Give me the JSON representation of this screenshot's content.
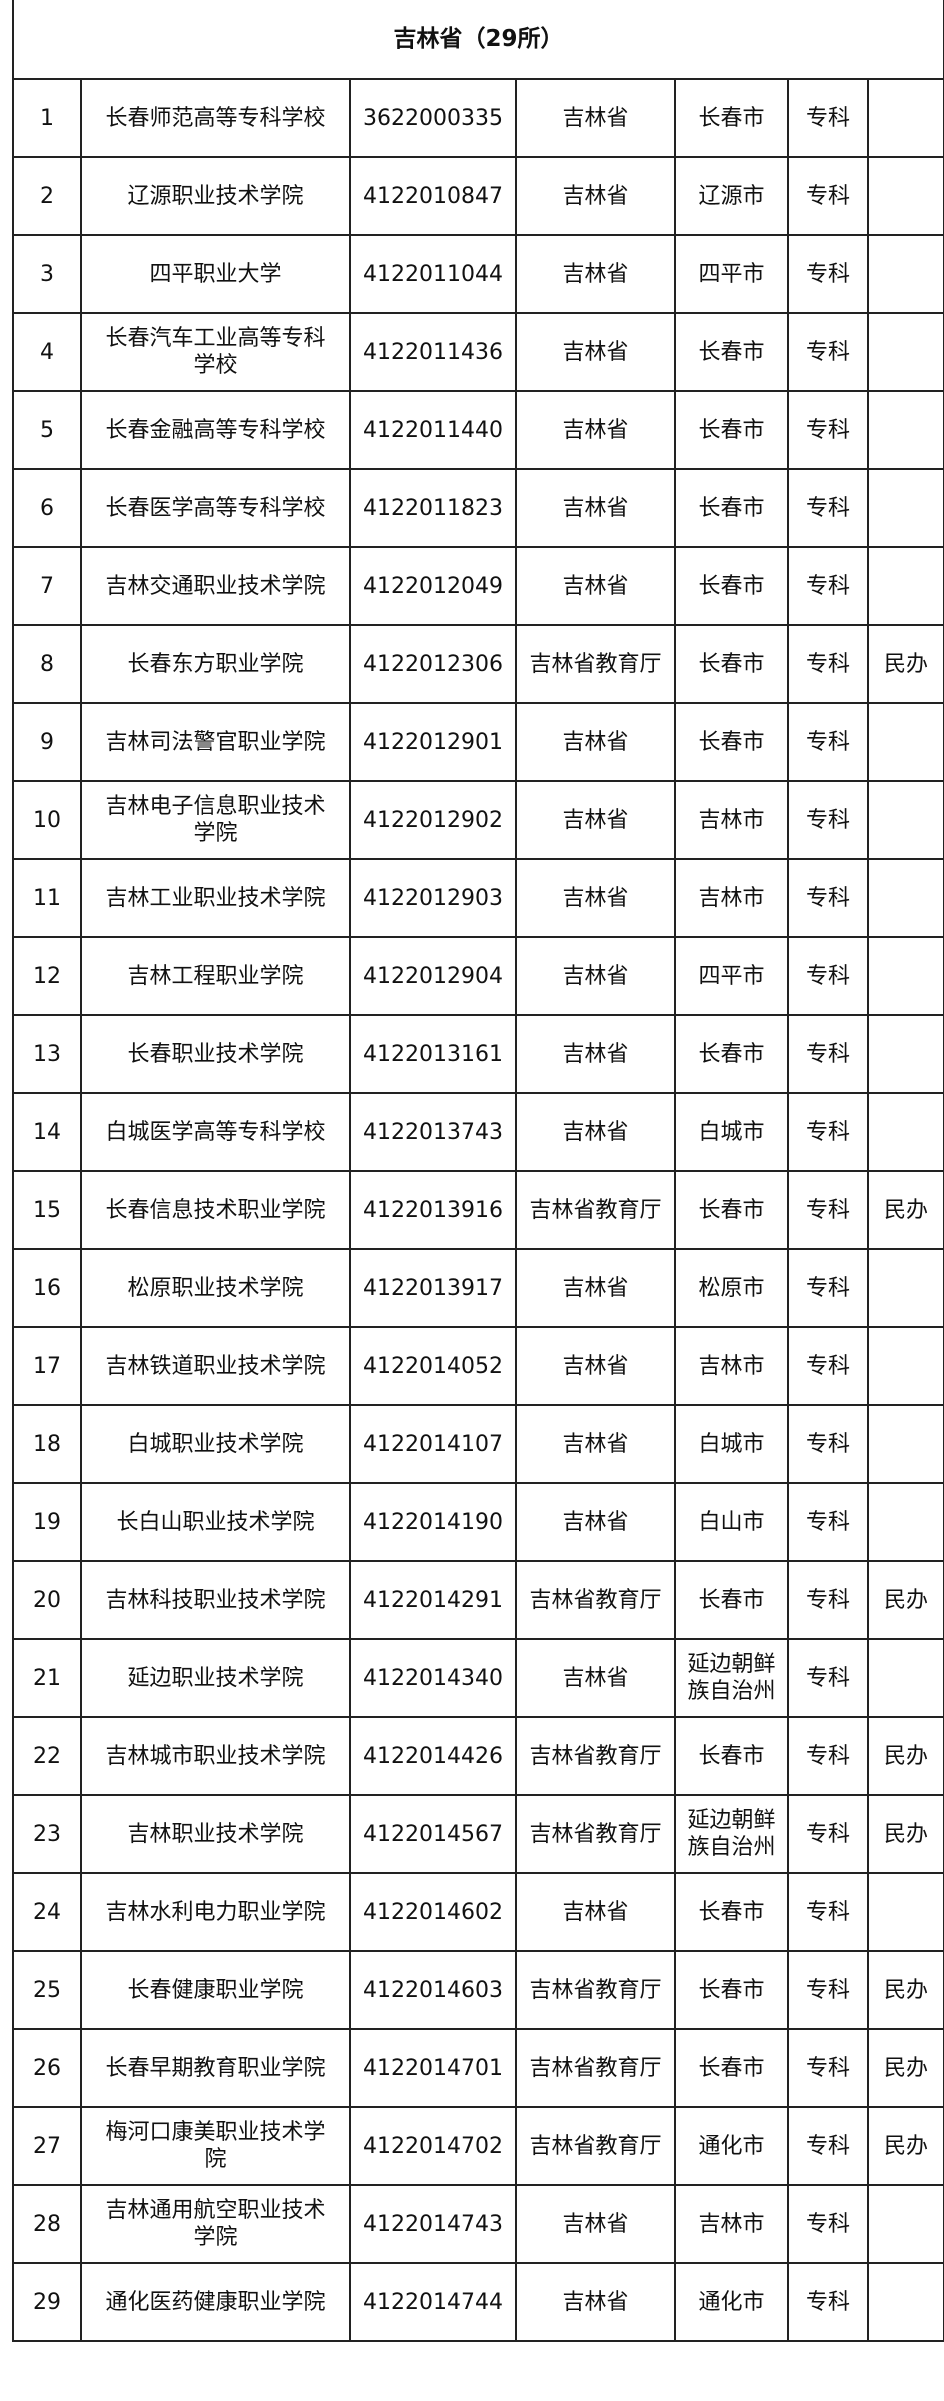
{
  "title": "吉林省（29所）",
  "rows": [
    {
      "no": "1",
      "name": "长春师范高等专科学校",
      "code": "3622000335",
      "authority": "吉林省",
      "city": "长春市",
      "level": "专科",
      "note": ""
    },
    {
      "no": "2",
      "name": "辽源职业技术学院",
      "code": "4122010847",
      "authority": "吉林省",
      "city": "辽源市",
      "level": "专科",
      "note": ""
    },
    {
      "no": "3",
      "name": "四平职业大学",
      "code": "4122011044",
      "authority": "吉林省",
      "city": "四平市",
      "level": "专科",
      "note": ""
    },
    {
      "no": "4",
      "name": "长春汽车工业高等专科\n学校",
      "code": "4122011436",
      "authority": "吉林省",
      "city": "长春市",
      "level": "专科",
      "note": ""
    },
    {
      "no": "5",
      "name": "长春金融高等专科学校",
      "code": "4122011440",
      "authority": "吉林省",
      "city": "长春市",
      "level": "专科",
      "note": ""
    },
    {
      "no": "6",
      "name": "长春医学高等专科学校",
      "code": "4122011823",
      "authority": "吉林省",
      "city": "长春市",
      "level": "专科",
      "note": ""
    },
    {
      "no": "7",
      "name": "吉林交通职业技术学院",
      "code": "4122012049",
      "authority": "吉林省",
      "city": "长春市",
      "level": "专科",
      "note": ""
    },
    {
      "no": "8",
      "name": "长春东方职业学院",
      "code": "4122012306",
      "authority": "吉林省教育厅",
      "city": "长春市",
      "level": "专科",
      "note": "民办"
    },
    {
      "no": "9",
      "name": "吉林司法警官职业学院",
      "code": "4122012901",
      "authority": "吉林省",
      "city": "长春市",
      "level": "专科",
      "note": ""
    },
    {
      "no": "10",
      "name": "吉林电子信息职业技术\n学院",
      "code": "4122012902",
      "authority": "吉林省",
      "city": "吉林市",
      "level": "专科",
      "note": ""
    },
    {
      "no": "11",
      "name": "吉林工业职业技术学院",
      "code": "4122012903",
      "authority": "吉林省",
      "city": "吉林市",
      "level": "专科",
      "note": ""
    },
    {
      "no": "12",
      "name": "吉林工程职业学院",
      "code": "4122012904",
      "authority": "吉林省",
      "city": "四平市",
      "level": "专科",
      "note": ""
    },
    {
      "no": "13",
      "name": "长春职业技术学院",
      "code": "4122013161",
      "authority": "吉林省",
      "city": "长春市",
      "level": "专科",
      "note": ""
    },
    {
      "no": "14",
      "name": "白城医学高等专科学校",
      "code": "4122013743",
      "authority": "吉林省",
      "city": "白城市",
      "level": "专科",
      "note": ""
    },
    {
      "no": "15",
      "name": "长春信息技术职业学院",
      "code": "4122013916",
      "authority": "吉林省教育厅",
      "city": "长春市",
      "level": "专科",
      "note": "民办"
    },
    {
      "no": "16",
      "name": "松原职业技术学院",
      "code": "4122013917",
      "authority": "吉林省",
      "city": "松原市",
      "level": "专科",
      "note": ""
    },
    {
      "no": "17",
      "name": "吉林铁道职业技术学院",
      "code": "4122014052",
      "authority": "吉林省",
      "city": "吉林市",
      "level": "专科",
      "note": ""
    },
    {
      "no": "18",
      "name": "白城职业技术学院",
      "code": "4122014107",
      "authority": "吉林省",
      "city": "白城市",
      "level": "专科",
      "note": ""
    },
    {
      "no": "19",
      "name": "长白山职业技术学院",
      "code": "4122014190",
      "authority": "吉林省",
      "city": "白山市",
      "level": "专科",
      "note": ""
    },
    {
      "no": "20",
      "name": "吉林科技职业技术学院",
      "code": "4122014291",
      "authority": "吉林省教育厅",
      "city": "长春市",
      "level": "专科",
      "note": "民办"
    },
    {
      "no": "21",
      "name": "延边职业技术学院",
      "code": "4122014340",
      "authority": "吉林省",
      "city": "延边朝鲜\n族自治州",
      "level": "专科",
      "note": ""
    },
    {
      "no": "22",
      "name": "吉林城市职业技术学院",
      "code": "4122014426",
      "authority": "吉林省教育厅",
      "city": "长春市",
      "level": "专科",
      "note": "民办"
    },
    {
      "no": "23",
      "name": "吉林职业技术学院",
      "code": "4122014567",
      "authority": "吉林省教育厅",
      "city": "延边朝鲜\n族自治州",
      "level": "专科",
      "note": "民办"
    },
    {
      "no": "24",
      "name": "吉林水利电力职业学院",
      "code": "4122014602",
      "authority": "吉林省",
      "city": "长春市",
      "level": "专科",
      "note": ""
    },
    {
      "no": "25",
      "name": "长春健康职业学院",
      "code": "4122014603",
      "authority": "吉林省教育厅",
      "city": "长春市",
      "level": "专科",
      "note": "民办"
    },
    {
      "no": "26",
      "name": "长春早期教育职业学院",
      "code": "4122014701",
      "authority": "吉林省教育厅",
      "city": "长春市",
      "level": "专科",
      "note": "民办"
    },
    {
      "no": "27",
      "name": "梅河口康美职业技术学\n院",
      "code": "4122014702",
      "authority": "吉林省教育厅",
      "city": "通化市",
      "level": "专科",
      "note": "民办"
    },
    {
      "no": "28",
      "name": "吉林通用航空职业技术\n学院",
      "code": "4122014743",
      "authority": "吉林省",
      "city": "吉林市",
      "level": "专科",
      "note": ""
    },
    {
      "no": "29",
      "name": "通化医药健康职业学院",
      "code": "4122014744",
      "authority": "吉林省",
      "city": "通化市",
      "level": "专科",
      "note": ""
    }
  ]
}
